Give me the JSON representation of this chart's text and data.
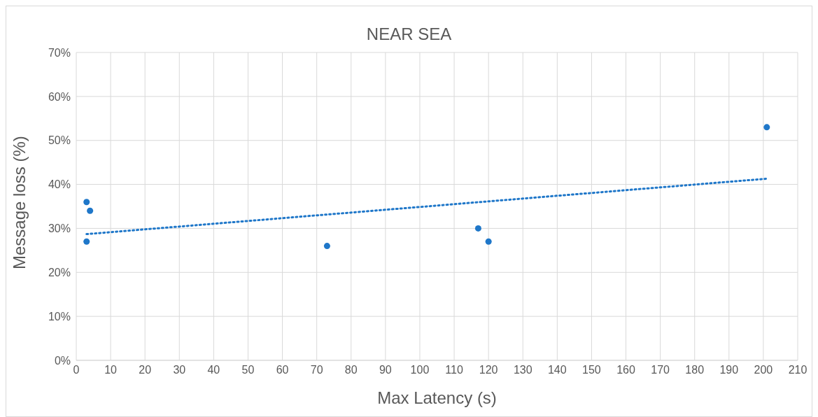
{
  "chart_data": {
    "type": "scatter",
    "title": "NEAR SEA",
    "xlabel": "Max Latency (s)",
    "ylabel": "Message loss (%)",
    "series": [
      {
        "type": "scatter",
        "color": "#1f77c9",
        "marker": "circle",
        "x": [
          3,
          4,
          3,
          73,
          117,
          120,
          201
        ],
        "values": [
          36,
          34,
          27,
          26,
          30,
          27,
          53
        ]
      },
      {
        "type": "line",
        "color": "#1f77c9",
        "marker": "none",
        "line_style": "dotted",
        "x": [
          3,
          201
        ],
        "values": [
          28.7,
          41.3
        ]
      }
    ],
    "xlim": [
      0,
      210
    ],
    "xticks": [
      0,
      10,
      20,
      30,
      40,
      50,
      60,
      70,
      80,
      90,
      100,
      110,
      120,
      130,
      140,
      150,
      160,
      170,
      180,
      190,
      200,
      210
    ],
    "ylim": [
      0,
      70
    ],
    "yticks": [
      {
        "value": 0,
        "label": "0%"
      },
      {
        "value": 10,
        "label": "10%"
      },
      {
        "value": 20,
        "label": "20%"
      },
      {
        "value": 30,
        "label": "30%"
      },
      {
        "value": 40,
        "label": "40%"
      },
      {
        "value": 50,
        "label": "50%"
      },
      {
        "value": 60,
        "label": "60%"
      },
      {
        "value": 70,
        "label": "70%"
      }
    ],
    "grid": true
  }
}
